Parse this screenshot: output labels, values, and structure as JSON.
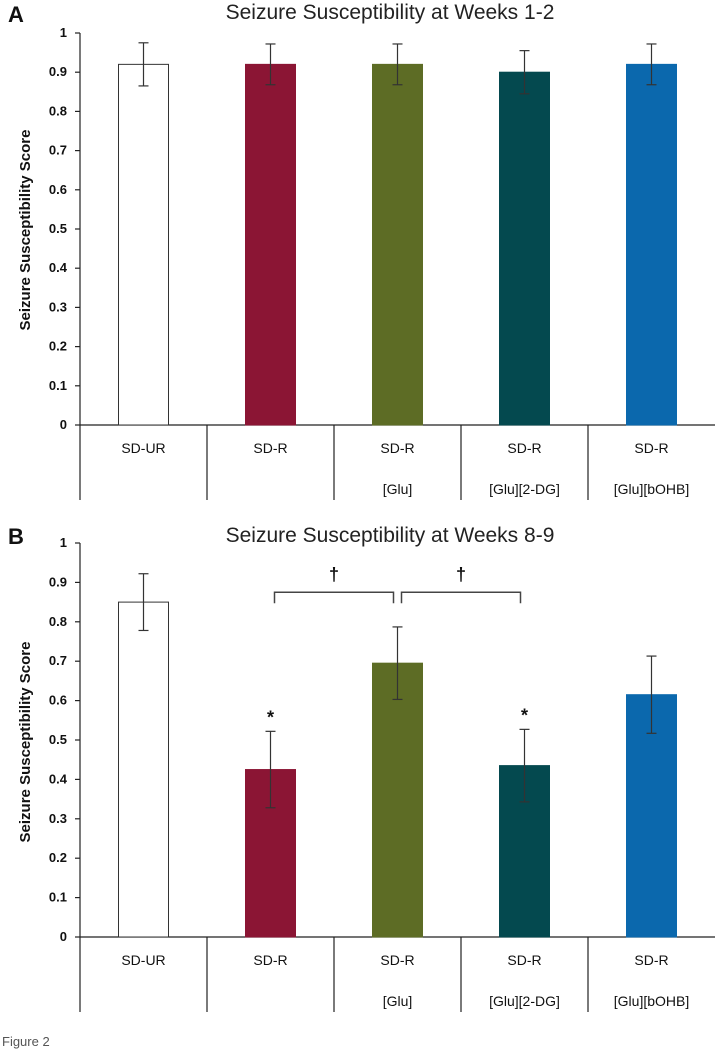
{
  "chart_data": [
    {
      "type": "bar",
      "panel": "A",
      "title": "Seizure Susceptibility at Weeks 1-2",
      "ylabel": "Seizure Susceptibility Score",
      "xlabel": "",
      "ylim": [
        0,
        1
      ],
      "yticks": [
        "0",
        "0.1",
        "0.2",
        "0.3",
        "0.4",
        "0.5",
        "0.6",
        "0.7",
        "0.8",
        "0.9",
        "1"
      ],
      "categories": [
        {
          "line1": "SD-UR",
          "line2": ""
        },
        {
          "line1": "SD-R",
          "line2": ""
        },
        {
          "line1": "SD-R",
          "line2": "[Glu]"
        },
        {
          "line1": "SD-R",
          "line2": "[Glu][2-DG]"
        },
        {
          "line1": "SD-R",
          "line2": "[Glu][bOHB]"
        }
      ],
      "values": [
        0.92,
        0.92,
        0.92,
        0.9,
        0.92
      ],
      "errors": [
        0.055,
        0.052,
        0.052,
        0.055,
        0.052
      ],
      "colors": [
        "#ffffff",
        "#8b1534",
        "#5d6c25",
        "#04494f",
        "#0b68ad"
      ],
      "markers": [
        "",
        "",
        "",
        "",
        ""
      ],
      "brackets": []
    },
    {
      "type": "bar",
      "panel": "B",
      "title": "Seizure Susceptibility at Weeks 8-9",
      "ylabel": "Seizure Susceptibility Score",
      "xlabel": "",
      "ylim": [
        0,
        1
      ],
      "yticks": [
        "0",
        "0.1",
        "0.2",
        "0.3",
        "0.4",
        "0.5",
        "0.6",
        "0.7",
        "0.8",
        "0.9",
        "1"
      ],
      "categories": [
        {
          "line1": "SD-UR",
          "line2": ""
        },
        {
          "line1": "SD-R",
          "line2": ""
        },
        {
          "line1": "SD-R",
          "line2": "[Glu]"
        },
        {
          "line1": "SD-R",
          "line2": "[Glu][2-DG]"
        },
        {
          "line1": "SD-R",
          "line2": "[Glu][bOHB]"
        }
      ],
      "values": [
        0.85,
        0.425,
        0.695,
        0.435,
        0.615
      ],
      "errors": [
        0.072,
        0.097,
        0.092,
        0.092,
        0.098
      ],
      "colors": [
        "#ffffff",
        "#8b1534",
        "#5d6c25",
        "#04494f",
        "#0b68ad"
      ],
      "markers": [
        "",
        "*",
        "",
        "*",
        ""
      ],
      "brackets": [
        {
          "from": 1,
          "to": 2,
          "level": 0.875,
          "symbol": "†"
        },
        {
          "from": 2,
          "to": 3,
          "level": 0.875,
          "symbol": "†"
        }
      ]
    }
  ],
  "footer": "Figure 2"
}
